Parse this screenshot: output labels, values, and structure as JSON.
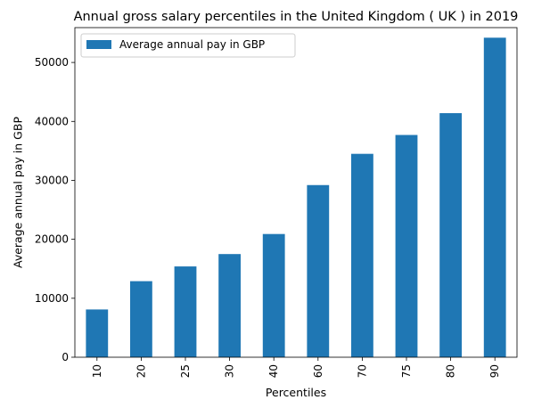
{
  "chart_data": {
    "type": "bar",
    "title": "Annual gross salary percentiles in the United Kingdom ( UK ) in 2019",
    "xlabel": "Percentiles",
    "ylabel": "Average annual pay in GBP",
    "categories": [
      "10",
      "20",
      "25",
      "30",
      "40",
      "60",
      "70",
      "75",
      "80",
      "90"
    ],
    "series": [
      {
        "name": "Average annual pay in GBP",
        "values": [
          8100,
          12900,
          15400,
          17500,
          20900,
          29200,
          34500,
          37700,
          41400,
          54200
        ],
        "color": "#1f77b4"
      }
    ],
    "ylim": [
      0,
      55910
    ],
    "yticks": [
      0,
      10000,
      20000,
      30000,
      40000,
      50000
    ],
    "legend_position": "top-left",
    "grid": false,
    "x_tick_rotation": "vertical"
  }
}
